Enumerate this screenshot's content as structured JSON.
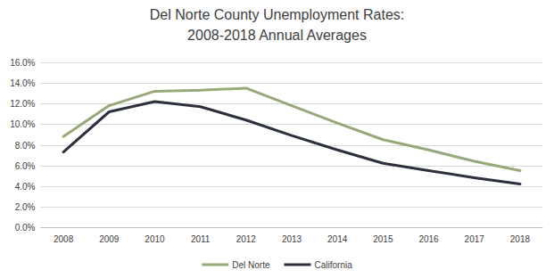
{
  "chart_data": {
    "type": "line",
    "title": "Del Norte County Unemployment Rates:",
    "subtitle": "2008-2018 Annual Averages",
    "categories": [
      "2008",
      "2009",
      "2010",
      "2011",
      "2012",
      "2013",
      "2014",
      "2015",
      "2016",
      "2017",
      "2018"
    ],
    "series": [
      {
        "name": "Del Norte",
        "color": "#98a979",
        "values": [
          8.8,
          11.8,
          13.2,
          13.3,
          13.5,
          11.8,
          10.1,
          8.5,
          7.5,
          6.4,
          5.5
        ]
      },
      {
        "name": "California",
        "color": "#2b303c",
        "values": [
          7.3,
          11.2,
          12.2,
          11.7,
          10.4,
          8.9,
          7.5,
          6.2,
          5.5,
          4.8,
          4.2
        ]
      }
    ],
    "ylim": [
      0,
      16
    ],
    "yticks": [
      {
        "value": 0,
        "label": "0.0%"
      },
      {
        "value": 2,
        "label": "2.0%"
      },
      {
        "value": 4,
        "label": "4.0%"
      },
      {
        "value": 6,
        "label": "6.0%"
      },
      {
        "value": 8,
        "label": "8.0%"
      },
      {
        "value": 10,
        "label": "10.0%"
      },
      {
        "value": 12,
        "label": "12.0%"
      },
      {
        "value": 14,
        "label": "14.0%"
      },
      {
        "value": 16,
        "label": "16.0%"
      }
    ],
    "grid": true,
    "legend": "bottom"
  }
}
